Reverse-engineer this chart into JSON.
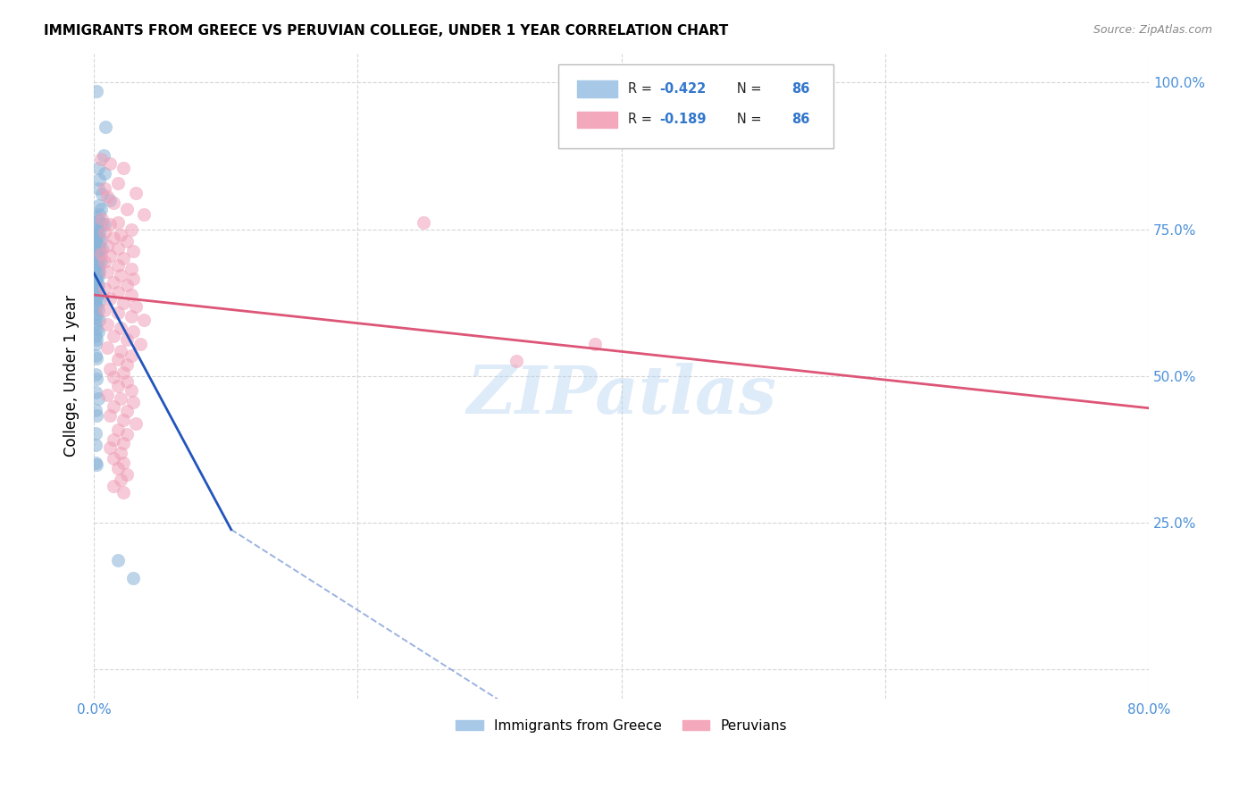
{
  "title": "IMMIGRANTS FROM GREECE VS PERUVIAN COLLEGE, UNDER 1 YEAR CORRELATION CHART",
  "source": "Source: ZipAtlas.com",
  "ylabel": "College, Under 1 year",
  "xlim": [
    0.0,
    0.8
  ],
  "ylim": [
    0.0,
    1.05
  ],
  "xticks": [
    0.0,
    0.2,
    0.4,
    0.6,
    0.8
  ],
  "xticklabels": [
    "0.0%",
    "",
    "",
    "",
    "80.0%"
  ],
  "yticks": [
    0.0,
    0.25,
    0.5,
    0.75,
    1.0
  ],
  "yticklabels": [
    "",
    "25.0%",
    "50.0%",
    "75.0%",
    "100.0%"
  ],
  "greece_color": "#8ab4d8",
  "peru_color": "#f0a0b8",
  "greece_line_color": "#2255bb",
  "peru_line_color": "#dd5577",
  "greece_scatter": [
    [
      0.002,
      0.985
    ],
    [
      0.009,
      0.925
    ],
    [
      0.007,
      0.875
    ],
    [
      0.003,
      0.855
    ],
    [
      0.008,
      0.845
    ],
    [
      0.004,
      0.835
    ],
    [
      0.003,
      0.82
    ],
    [
      0.006,
      0.81
    ],
    [
      0.012,
      0.8
    ],
    [
      0.003,
      0.79
    ],
    [
      0.005,
      0.785
    ],
    [
      0.004,
      0.775
    ],
    [
      0.002,
      0.77
    ],
    [
      0.003,
      0.765
    ],
    [
      0.006,
      0.76
    ],
    [
      0.008,
      0.758
    ],
    [
      0.001,
      0.755
    ],
    [
      0.002,
      0.75
    ],
    [
      0.003,
      0.748
    ],
    [
      0.004,
      0.745
    ],
    [
      0.001,
      0.74
    ],
    [
      0.002,
      0.738
    ],
    [
      0.003,
      0.735
    ],
    [
      0.005,
      0.732
    ],
    [
      0.001,
      0.728
    ],
    [
      0.002,
      0.725
    ],
    [
      0.003,
      0.722
    ],
    [
      0.004,
      0.72
    ],
    [
      0.006,
      0.718
    ],
    [
      0.001,
      0.715
    ],
    [
      0.002,
      0.712
    ],
    [
      0.003,
      0.71
    ],
    [
      0.004,
      0.708
    ],
    [
      0.001,
      0.705
    ],
    [
      0.002,
      0.703
    ],
    [
      0.003,
      0.7
    ],
    [
      0.004,
      0.698
    ],
    [
      0.005,
      0.695
    ],
    [
      0.001,
      0.692
    ],
    [
      0.002,
      0.69
    ],
    [
      0.003,
      0.688
    ],
    [
      0.001,
      0.685
    ],
    [
      0.002,
      0.682
    ],
    [
      0.003,
      0.68
    ],
    [
      0.004,
      0.678
    ],
    [
      0.001,
      0.675
    ],
    [
      0.002,
      0.672
    ],
    [
      0.003,
      0.67
    ],
    [
      0.001,
      0.668
    ],
    [
      0.002,
      0.665
    ],
    [
      0.001,
      0.66
    ],
    [
      0.002,
      0.658
    ],
    [
      0.003,
      0.655
    ],
    [
      0.001,
      0.652
    ],
    [
      0.002,
      0.65
    ],
    [
      0.001,
      0.645
    ],
    [
      0.003,
      0.64
    ],
    [
      0.001,
      0.635
    ],
    [
      0.002,
      0.632
    ],
    [
      0.004,
      0.628
    ],
    [
      0.001,
      0.622
    ],
    [
      0.002,
      0.618
    ],
    [
      0.003,
      0.612
    ],
    [
      0.001,
      0.605
    ],
    [
      0.002,
      0.6
    ],
    [
      0.004,
      0.595
    ],
    [
      0.001,
      0.588
    ],
    [
      0.002,
      0.58
    ],
    [
      0.003,
      0.575
    ],
    [
      0.001,
      0.568
    ],
    [
      0.002,
      0.562
    ],
    [
      0.001,
      0.555
    ],
    [
      0.001,
      0.535
    ],
    [
      0.002,
      0.53
    ],
    [
      0.001,
      0.502
    ],
    [
      0.002,
      0.495
    ],
    [
      0.001,
      0.472
    ],
    [
      0.003,
      0.462
    ],
    [
      0.001,
      0.442
    ],
    [
      0.002,
      0.432
    ],
    [
      0.001,
      0.402
    ],
    [
      0.001,
      0.382
    ],
    [
      0.001,
      0.352
    ],
    [
      0.002,
      0.348
    ],
    [
      0.018,
      0.185
    ],
    [
      0.03,
      0.155
    ]
  ],
  "peru_scatter": [
    [
      0.005,
      0.87
    ],
    [
      0.012,
      0.862
    ],
    [
      0.022,
      0.855
    ],
    [
      0.018,
      0.828
    ],
    [
      0.008,
      0.82
    ],
    [
      0.032,
      0.812
    ],
    [
      0.01,
      0.805
    ],
    [
      0.015,
      0.795
    ],
    [
      0.025,
      0.785
    ],
    [
      0.038,
      0.775
    ],
    [
      0.006,
      0.768
    ],
    [
      0.018,
      0.762
    ],
    [
      0.012,
      0.758
    ],
    [
      0.028,
      0.75
    ],
    [
      0.008,
      0.745
    ],
    [
      0.02,
      0.74
    ],
    [
      0.015,
      0.735
    ],
    [
      0.025,
      0.73
    ],
    [
      0.01,
      0.722
    ],
    [
      0.018,
      0.718
    ],
    [
      0.03,
      0.712
    ],
    [
      0.005,
      0.708
    ],
    [
      0.012,
      0.705
    ],
    [
      0.022,
      0.7
    ],
    [
      0.008,
      0.695
    ],
    [
      0.018,
      0.688
    ],
    [
      0.028,
      0.682
    ],
    [
      0.01,
      0.678
    ],
    [
      0.02,
      0.672
    ],
    [
      0.03,
      0.665
    ],
    [
      0.015,
      0.66
    ],
    [
      0.025,
      0.655
    ],
    [
      0.008,
      0.648
    ],
    [
      0.018,
      0.642
    ],
    [
      0.028,
      0.638
    ],
    [
      0.012,
      0.632
    ],
    [
      0.022,
      0.625
    ],
    [
      0.032,
      0.618
    ],
    [
      0.008,
      0.612
    ],
    [
      0.018,
      0.608
    ],
    [
      0.028,
      0.602
    ],
    [
      0.038,
      0.595
    ],
    [
      0.01,
      0.588
    ],
    [
      0.02,
      0.582
    ],
    [
      0.03,
      0.575
    ],
    [
      0.015,
      0.568
    ],
    [
      0.025,
      0.562
    ],
    [
      0.035,
      0.555
    ],
    [
      0.01,
      0.548
    ],
    [
      0.02,
      0.542
    ],
    [
      0.028,
      0.535
    ],
    [
      0.018,
      0.528
    ],
    [
      0.025,
      0.52
    ],
    [
      0.012,
      0.512
    ],
    [
      0.022,
      0.505
    ],
    [
      0.015,
      0.498
    ],
    [
      0.025,
      0.49
    ],
    [
      0.018,
      0.482
    ],
    [
      0.028,
      0.475
    ],
    [
      0.01,
      0.468
    ],
    [
      0.02,
      0.462
    ],
    [
      0.03,
      0.455
    ],
    [
      0.015,
      0.448
    ],
    [
      0.025,
      0.44
    ],
    [
      0.012,
      0.432
    ],
    [
      0.022,
      0.425
    ],
    [
      0.032,
      0.418
    ],
    [
      0.018,
      0.408
    ],
    [
      0.025,
      0.4
    ],
    [
      0.015,
      0.392
    ],
    [
      0.022,
      0.385
    ],
    [
      0.012,
      0.378
    ],
    [
      0.02,
      0.368
    ],
    [
      0.015,
      0.36
    ],
    [
      0.022,
      0.352
    ],
    [
      0.018,
      0.342
    ],
    [
      0.025,
      0.332
    ],
    [
      0.02,
      0.322
    ],
    [
      0.015,
      0.312
    ],
    [
      0.022,
      0.302
    ],
    [
      0.25,
      0.762
    ],
    [
      0.32,
      0.525
    ],
    [
      0.38,
      0.555
    ]
  ],
  "greece_trendline_solid": [
    [
      0.0,
      0.675
    ],
    [
      0.104,
      0.238
    ]
  ],
  "greece_trendline_dashed": [
    [
      0.104,
      0.238
    ],
    [
      0.48,
      -0.3
    ]
  ],
  "peru_trendline": [
    [
      0.0,
      0.638
    ],
    [
      0.8,
      0.445
    ]
  ],
  "legend_labels_bottom": [
    "Immigrants from Greece",
    "Peruvians"
  ]
}
